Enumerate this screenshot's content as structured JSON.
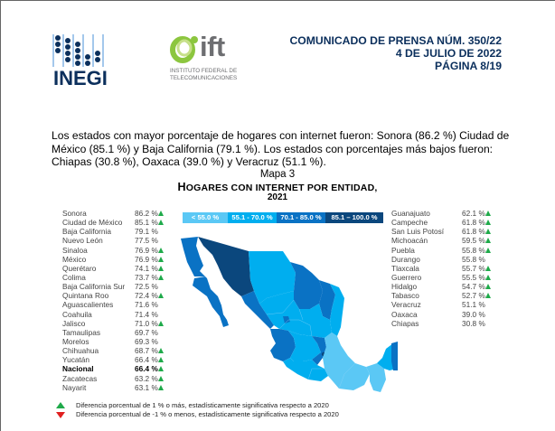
{
  "header": {
    "logo_left": {
      "name": "INEGI"
    },
    "logo_right": {
      "name": "ift",
      "subtitle_line1": "INSTITUTO FEDERAL DE",
      "subtitle_line2": "TELECOMUNICACIONES"
    },
    "press_release": "COMUNICADO DE PRENSA NÚM. 350/22",
    "date": "4 DE JULIO DE 2022",
    "page": "PÁGINA 8/19"
  },
  "paragraph": "Los estados con mayor porcentaje de hogares con internet fueron: Sonora (86.2 %) Ciudad de México (85.1 %) y Baja California (79.1 %). Los estados con porcentajes más bajos fueron: Chiapas (30.8 %), Oaxaca (39.0 %) y Veracruz (51.1 %).",
  "map": {
    "label": "Mapa 3",
    "title_first": "H",
    "title_rest": "OGARES CON INTERNET POR ENTIDAD,",
    "year": "2021",
    "legend": [
      {
        "label": "< 55.0 %",
        "color": "#5bc8f5"
      },
      {
        "label": "55.1 - 70.0 %",
        "color": "#00aeef"
      },
      {
        "label": "70.1 - 85.0 %",
        "color": "#0a72c4"
      },
      {
        "label": "85.1 – 100.0 %",
        "color": "#0b477d"
      }
    ]
  },
  "states_left": [
    {
      "name": "Sonora",
      "value": "86.2 %",
      "up": true
    },
    {
      "name": "Ciudad de México",
      "value": "85.1 %",
      "up": true
    },
    {
      "name": "Baja California",
      "value": "79.1 %",
      "up": false
    },
    {
      "name": "Nuevo León",
      "value": "77.5 %",
      "up": false
    },
    {
      "name": "Sinaloa",
      "value": "76.9 %",
      "up": true
    },
    {
      "name": "México",
      "value": "76.9 %",
      "up": true
    },
    {
      "name": "Querétaro",
      "value": "74.1 %",
      "up": true
    },
    {
      "name": "Colima",
      "value": "73.7 %",
      "up": true
    },
    {
      "name": "Baja California Sur",
      "value": "72.5 %",
      "up": false
    },
    {
      "name": "Quintana Roo",
      "value": "72.4 %",
      "up": true
    },
    {
      "name": "Aguascalientes",
      "value": "71.6 %",
      "up": false
    },
    {
      "name": "Coahuila",
      "value": "71.4 %",
      "up": false
    },
    {
      "name": "Jalisco",
      "value": "71.0 %",
      "up": true
    },
    {
      "name": "Tamaulipas",
      "value": "69.7 %",
      "up": false
    },
    {
      "name": "Morelos",
      "value": "69.3 %",
      "up": false
    },
    {
      "name": "Chihuahua",
      "value": "68.7 %",
      "up": true
    },
    {
      "name": "Yucatán",
      "value": "66.4 %",
      "up": true
    },
    {
      "name": "Nacional",
      "value": "66.4 %",
      "up": true,
      "bold": true
    },
    {
      "name": "Zacatecas",
      "value": "63.2 %",
      "up": true
    },
    {
      "name": "Nayarit",
      "value": "63.1 %",
      "up": true
    }
  ],
  "states_right": [
    {
      "name": "Guanajuato",
      "value": "62.1 %",
      "up": true
    },
    {
      "name": "Campeche",
      "value": "61.8 %",
      "up": true
    },
    {
      "name": "San Luis Potosí",
      "value": "61.8 %",
      "up": true
    },
    {
      "name": "Michoacán",
      "value": "59.5 %",
      "up": true
    },
    {
      "name": "Puebla",
      "value": "55.8 %",
      "up": true
    },
    {
      "name": "Durango",
      "value": "55.8 %",
      "up": false
    },
    {
      "name": "Tlaxcala",
      "value": "55.7 %",
      "up": true
    },
    {
      "name": "Guerrero",
      "value": "55.5 %",
      "up": true
    },
    {
      "name": "Hidalgo",
      "value": "54.7 %",
      "up": true
    },
    {
      "name": "Tabasco",
      "value": "52.7 %",
      "up": true
    },
    {
      "name": "Veracruz",
      "value": "51.1 %",
      "up": false
    },
    {
      "name": "Oaxaca",
      "value": "39.0 %",
      "up": false
    },
    {
      "name": "Chiapas",
      "value": "30.8 %",
      "up": false
    }
  ],
  "notes": {
    "up": "Diferencia porcentual de 1 % o más, estadísticamente significativa respecto a 2020",
    "down": "Diferencia porcentual de -1 % o menos, estadísticamente significativa respecto a 2020"
  }
}
